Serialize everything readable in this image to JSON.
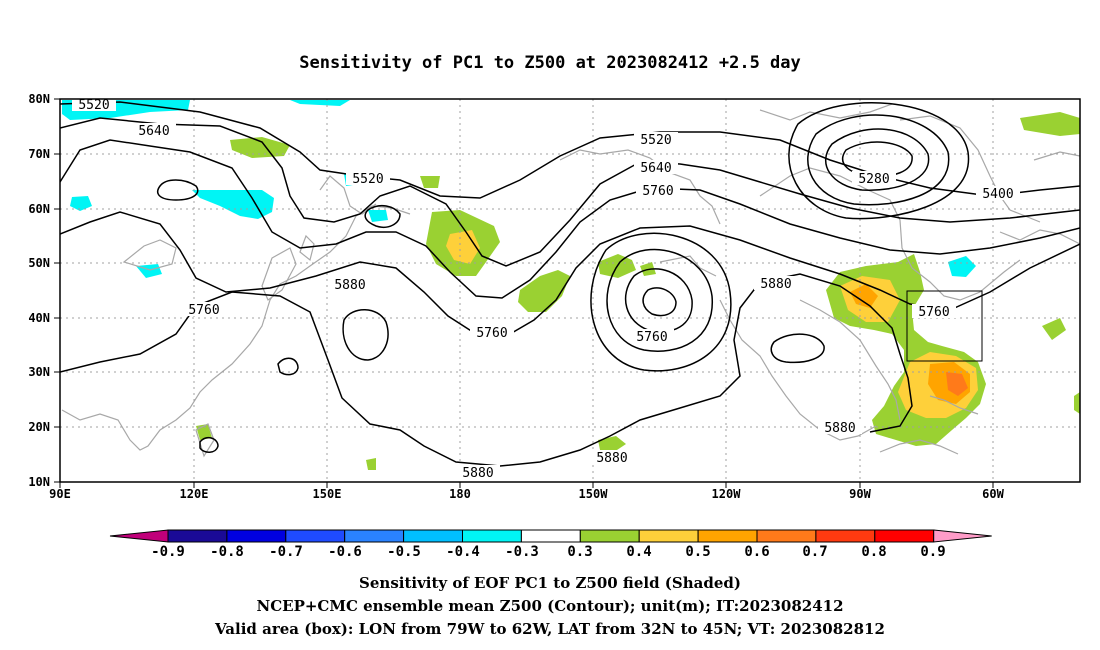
{
  "title": "Sensitivity of PC1 to Z500 at 2023082412 +2.5 day",
  "map": {
    "lon_range": [
      90,
      330
    ],
    "lat_range": [
      10,
      80
    ],
    "lat_ticks": [
      "10N",
      "20N",
      "30N",
      "40N",
      "50N",
      "60N",
      "70N",
      "80N"
    ],
    "lon_ticks": [
      "90E",
      "120E",
      "150E",
      "180",
      "150W",
      "120W",
      "90W",
      "60W"
    ],
    "valid_box": {
      "lon_from": "79W",
      "lon_to": "62W",
      "lat_from": "32N",
      "lat_to": "45N"
    },
    "contour_labels": [
      "5520",
      "5640",
      "5520",
      "5520",
      "5640",
      "5760",
      "5280",
      "5400",
      "5760",
      "5880",
      "5760",
      "5760",
      "5880",
      "5760",
      "5880",
      "5880",
      "5880"
    ],
    "colors": {
      "contour": "#000000",
      "coast": "#a8a8a8",
      "grid": "#a0a0a0"
    }
  },
  "colorbar": {
    "labels": [
      "-0.9",
      "-0.8",
      "-0.7",
      "-0.6",
      "-0.5",
      "-0.4",
      "-0.3",
      "0.3",
      "0.4",
      "0.5",
      "0.6",
      "0.7",
      "0.8",
      "0.9"
    ],
    "colors": [
      "#c0007a",
      "#1a0a96",
      "#0000e0",
      "#1f4bff",
      "#2a82ff",
      "#00bfff",
      "#00f5f5",
      "#ffffff",
      "#9ad132",
      "#fed03a",
      "#ffa400",
      "#ff7a1a",
      "#ff3a10",
      "#ff0000",
      "#ff9cc8"
    ]
  },
  "footer": {
    "line1": "Sensitivity of EOF PC1 to Z500 field (Shaded)",
    "line2": "NCEP+CMC ensemble mean Z500 (Contour); unit(m); IT:2023082412",
    "line3": "Valid area (box): LON from 79W to 62W, LAT from 32N to 45N; VT: 2023082812"
  }
}
